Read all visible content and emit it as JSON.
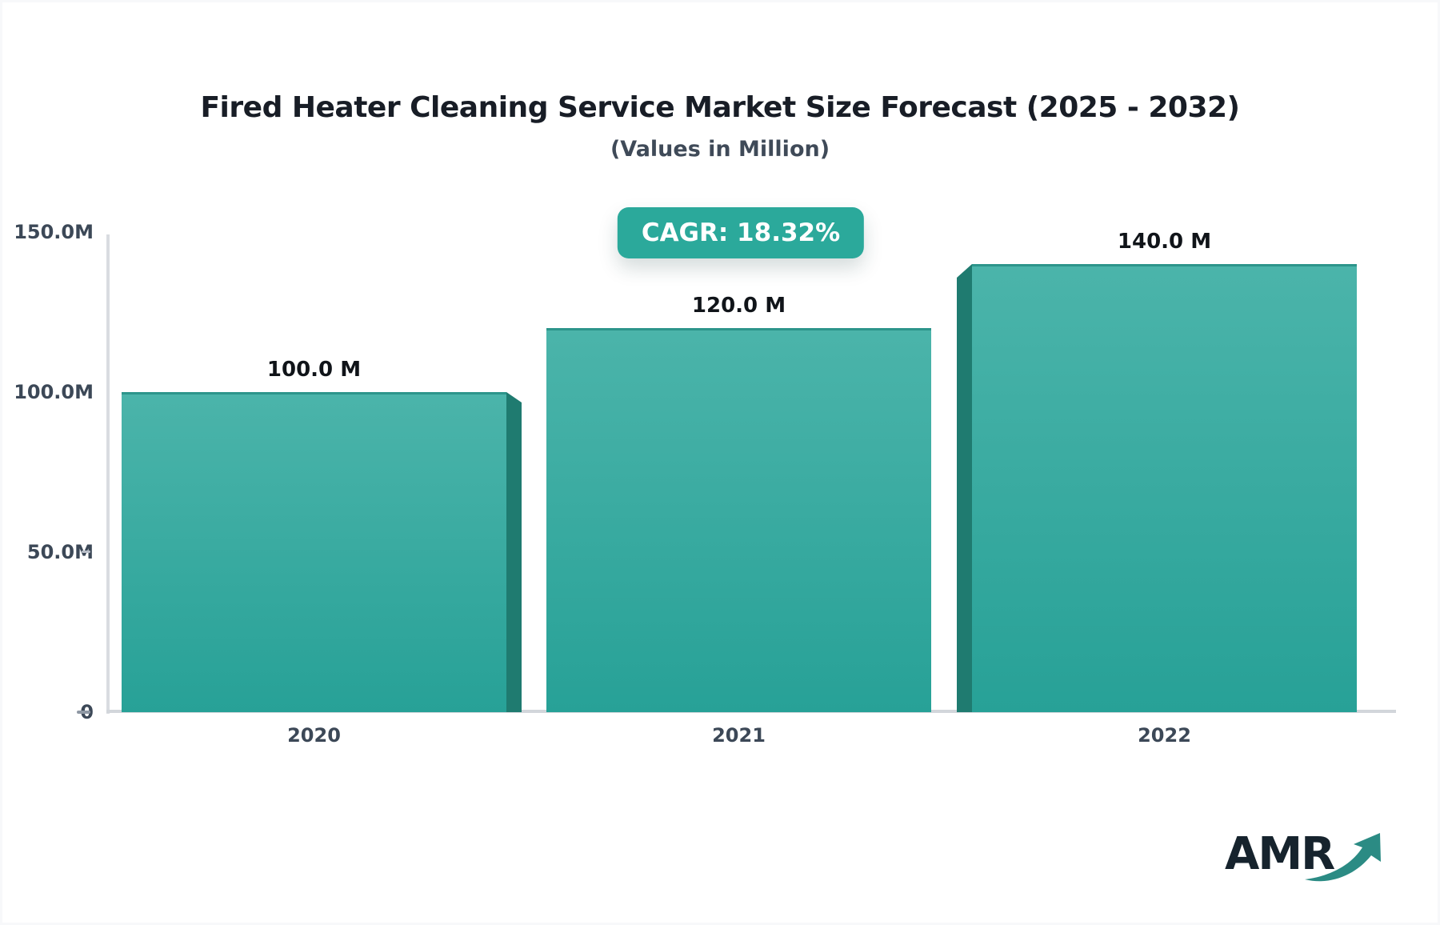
{
  "page": {
    "logo_text": "AMR"
  },
  "chart_data": {
    "type": "bar",
    "title": "Fired Heater Cleaning Service Market Size Forecast (2025 - 2032)",
    "subtitle": "(Values in Million)",
    "cagr_label": "CAGR: 18.32%",
    "categories": [
      "2020",
      "2021",
      "2022"
    ],
    "values": [
      100,
      120,
      140
    ],
    "value_labels": [
      "100.0 M",
      "120.0 M",
      "140.0 M"
    ],
    "unit": "Million",
    "yticks": [
      150,
      100,
      50,
      0
    ],
    "ytick_labels": [
      "150.0M",
      "100.0M",
      "50.0M",
      "0"
    ],
    "ylim": [
      0,
      150
    ],
    "grid": false,
    "legend": "none",
    "colors": {
      "bar_top": "#4bb4aa",
      "bar_bottom": "#27a197",
      "bar_edge": "#2d958b",
      "bar_side": "#1f7b70",
      "badge": "#2ba99b",
      "axis": "#d5d8de",
      "title_text": "#181d26",
      "subtitle_text": "#3f4a58",
      "tick_text": "#3c4857",
      "logo_text": "#16232d",
      "logo_arrow": "#2b8b84"
    }
  }
}
